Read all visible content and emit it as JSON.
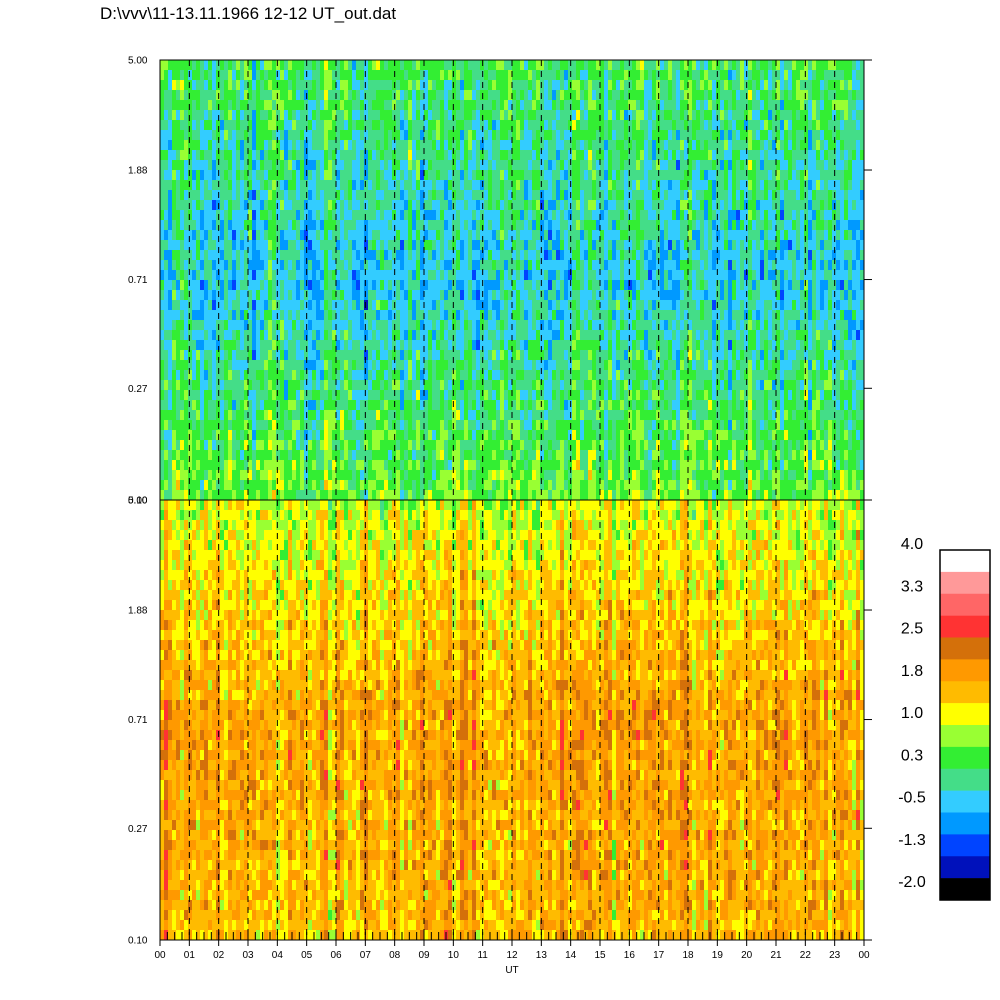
{
  "title": "D:\\vvv\\11-13.11.1966  12-12 UT_out.dat",
  "chart_data": [
    {
      "type": "heatmap",
      "panel": "upper",
      "title": "",
      "xlabel": "",
      "ylabel": "",
      "y_scale": "log",
      "ylim": [
        0.1,
        5.0
      ],
      "y_ticks": [
        "5.00",
        "1.88",
        "0.71",
        "0.27",
        "0.10"
      ],
      "y_tick_values": [
        5.0,
        1.88,
        0.71,
        0.27,
        0.1
      ],
      "xlim": [
        0,
        24
      ],
      "dominant_levels": {
        "high_y": 0.3,
        "mid_y": -0.3,
        "low_y": 0.6
      }
    },
    {
      "type": "heatmap",
      "panel": "lower",
      "title": "",
      "xlabel": "UT",
      "ylabel": "",
      "y_scale": "log",
      "ylim": [
        0.1,
        5.0
      ],
      "y_ticks": [
        "5.00",
        "1.88",
        "0.71",
        "0.27",
        "0.10"
      ],
      "y_tick_values": [
        5.0,
        1.88,
        0.71,
        0.27,
        0.1
      ],
      "xlim": [
        0,
        24
      ],
      "x_ticks": [
        "00",
        "01",
        "02",
        "03",
        "04",
        "05",
        "06",
        "07",
        "08",
        "09",
        "10",
        "11",
        "12",
        "13",
        "14",
        "15",
        "16",
        "17",
        "18",
        "19",
        "20",
        "21",
        "22",
        "23",
        "00"
      ],
      "dominant_levels": {
        "high_y": 1.0,
        "mid_y": 1.8,
        "low_y": 1.6
      }
    }
  ],
  "colorbar": {
    "labels": [
      "4.0",
      "3.3",
      "2.5",
      "1.8",
      "1.0",
      "0.3",
      "-0.5",
      "-1.3",
      "-2.0"
    ],
    "min": -2.0,
    "max": 4.0,
    "colors": [
      "#ffffff",
      "#ff9999",
      "#ff6666",
      "#ff3333",
      "#d4700a",
      "#ff9900",
      "#ffbb00",
      "#ffff00",
      "#99ff33",
      "#33ee33",
      "#44dd88",
      "#33ccff",
      "#0099ff",
      "#0044ff",
      "#0011bb",
      "#000000"
    ]
  }
}
